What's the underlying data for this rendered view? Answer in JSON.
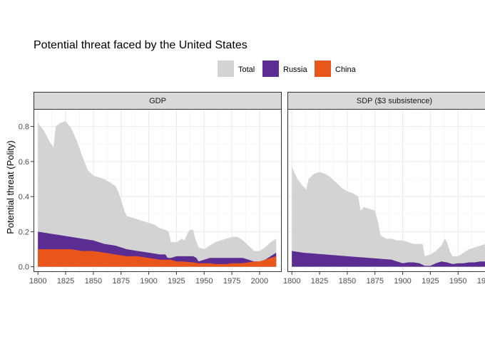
{
  "chart_data": {
    "type": "area",
    "title": "Potential threat faced by the United States",
    "ylabel": "Potential threat (Polity)",
    "xlabel": "",
    "legend": {
      "position": "top-right",
      "entries": [
        {
          "name": "Total",
          "color": "#d3d3d3"
        },
        {
          "name": "Russia",
          "color": "#5b2c91"
        },
        {
          "name": "China",
          "color": "#e8561c"
        }
      ]
    },
    "xlim": [
      1796,
      2020
    ],
    "ylim": [
      -0.03,
      0.9
    ],
    "x_ticks": [
      1800,
      1825,
      1850,
      1875,
      1900,
      1925,
      1950,
      1975,
      2000
    ],
    "x_tick_labels": [
      "1800",
      "1825",
      "1850",
      "1875",
      "1900",
      "1925",
      "1950",
      "1975",
      "2000"
    ],
    "y_ticks": [
      0.0,
      0.2,
      0.4,
      0.6,
      0.8
    ],
    "y_tick_labels": [
      "0.0",
      "0.2",
      "0.4",
      "0.6",
      "0.8"
    ],
    "grid": true,
    "panels": [
      {
        "label": "GDP",
        "series": [
          {
            "name": "Total",
            "color": "#d3d3d3",
            "points": [
              [
                1800,
                0.82
              ],
              [
                1805,
                0.78
              ],
              [
                1810,
                0.72
              ],
              [
                1814,
                0.68
              ],
              [
                1816,
                0.8
              ],
              [
                1820,
                0.82
              ],
              [
                1825,
                0.83
              ],
              [
                1830,
                0.79
              ],
              [
                1835,
                0.72
              ],
              [
                1840,
                0.63
              ],
              [
                1845,
                0.55
              ],
              [
                1850,
                0.52
              ],
              [
                1855,
                0.51
              ],
              [
                1860,
                0.5
              ],
              [
                1865,
                0.48
              ],
              [
                1870,
                0.46
              ],
              [
                1873,
                0.42
              ],
              [
                1875,
                0.38
              ],
              [
                1878,
                0.32
              ],
              [
                1880,
                0.29
              ],
              [
                1885,
                0.28
              ],
              [
                1890,
                0.27
              ],
              [
                1895,
                0.26
              ],
              [
                1900,
                0.25
              ],
              [
                1905,
                0.24
              ],
              [
                1910,
                0.22
              ],
              [
                1915,
                0.21
              ],
              [
                1918,
                0.2
              ],
              [
                1920,
                0.14
              ],
              [
                1925,
                0.14
              ],
              [
                1930,
                0.16
              ],
              [
                1932,
                0.15
              ],
              [
                1935,
                0.19
              ],
              [
                1937,
                0.21
              ],
              [
                1940,
                0.21
              ],
              [
                1942,
                0.16
              ],
              [
                1945,
                0.11
              ],
              [
                1950,
                0.1
              ],
              [
                1955,
                0.12
              ],
              [
                1960,
                0.14
              ],
              [
                1965,
                0.15
              ],
              [
                1970,
                0.16
              ],
              [
                1975,
                0.17
              ],
              [
                1980,
                0.17
              ],
              [
                1985,
                0.15
              ],
              [
                1990,
                0.12
              ],
              [
                1995,
                0.09
              ],
              [
                2000,
                0.09
              ],
              [
                2005,
                0.11
              ],
              [
                2010,
                0.14
              ],
              [
                2015,
                0.16
              ]
            ]
          },
          {
            "name": "Russia",
            "color": "#5b2c91",
            "points": [
              [
                1800,
                0.2
              ],
              [
                1810,
                0.19
              ],
              [
                1820,
                0.18
              ],
              [
                1830,
                0.17
              ],
              [
                1840,
                0.16
              ],
              [
                1850,
                0.15
              ],
              [
                1860,
                0.13
              ],
              [
                1870,
                0.12
              ],
              [
                1875,
                0.11
              ],
              [
                1880,
                0.1
              ],
              [
                1890,
                0.09
              ],
              [
                1900,
                0.08
              ],
              [
                1910,
                0.07
              ],
              [
                1915,
                0.07
              ],
              [
                1917,
                0.05
              ],
              [
                1920,
                0.05
              ],
              [
                1925,
                0.06
              ],
              [
                1930,
                0.06
              ],
              [
                1935,
                0.06
              ],
              [
                1940,
                0.06
              ],
              [
                1943,
                0.05
              ],
              [
                1945,
                0.03
              ],
              [
                1950,
                0.04
              ],
              [
                1955,
                0.05
              ],
              [
                1960,
                0.05
              ],
              [
                1965,
                0.05
              ],
              [
                1970,
                0.05
              ],
              [
                1975,
                0.05
              ],
              [
                1980,
                0.05
              ],
              [
                1985,
                0.05
              ],
              [
                1990,
                0.04
              ],
              [
                1995,
                0.03
              ],
              [
                2000,
                0.03
              ],
              [
                2005,
                0.04
              ],
              [
                2010,
                0.06
              ],
              [
                2015,
                0.08
              ]
            ]
          },
          {
            "name": "China",
            "color": "#e8561c",
            "points": [
              [
                1800,
                0.1
              ],
              [
                1810,
                0.1
              ],
              [
                1820,
                0.1
              ],
              [
                1830,
                0.1
              ],
              [
                1840,
                0.09
              ],
              [
                1850,
                0.09
              ],
              [
                1860,
                0.08
              ],
              [
                1870,
                0.07
              ],
              [
                1880,
                0.06
              ],
              [
                1890,
                0.06
              ],
              [
                1900,
                0.05
              ],
              [
                1910,
                0.04
              ],
              [
                1920,
                0.04
              ],
              [
                1925,
                0.03
              ],
              [
                1930,
                0.03
              ],
              [
                1940,
                0.025
              ],
              [
                1945,
                0.02
              ],
              [
                1950,
                0.02
              ],
              [
                1955,
                0.02
              ],
              [
                1960,
                0.015
              ],
              [
                1970,
                0.015
              ],
              [
                1975,
                0.02
              ],
              [
                1980,
                0.02
              ],
              [
                1985,
                0.02
              ],
              [
                1990,
                0.025
              ],
              [
                1995,
                0.03
              ],
              [
                2000,
                0.03
              ],
              [
                2005,
                0.04
              ],
              [
                2010,
                0.05
              ],
              [
                2015,
                0.06
              ]
            ]
          }
        ]
      },
      {
        "label": "SDP ($3 subsistence)",
        "series": [
          {
            "name": "Total",
            "color": "#d3d3d3",
            "points": [
              [
                1800,
                0.57
              ],
              [
                1805,
                0.5
              ],
              [
                1810,
                0.46
              ],
              [
                1813,
                0.44
              ],
              [
                1815,
                0.5
              ],
              [
                1820,
                0.53
              ],
              [
                1825,
                0.54
              ],
              [
                1830,
                0.53
              ],
              [
                1835,
                0.51
              ],
              [
                1840,
                0.48
              ],
              [
                1845,
                0.45
              ],
              [
                1850,
                0.43
              ],
              [
                1855,
                0.42
              ],
              [
                1860,
                0.4
              ],
              [
                1862,
                0.32
              ],
              [
                1865,
                0.34
              ],
              [
                1870,
                0.33
              ],
              [
                1875,
                0.32
              ],
              [
                1878,
                0.25
              ],
              [
                1880,
                0.18
              ],
              [
                1885,
                0.16
              ],
              [
                1890,
                0.16
              ],
              [
                1895,
                0.15
              ],
              [
                1900,
                0.15
              ],
              [
                1905,
                0.14
              ],
              [
                1910,
                0.13
              ],
              [
                1915,
                0.13
              ],
              [
                1918,
                0.13
              ],
              [
                1920,
                0.06
              ],
              [
                1925,
                0.07
              ],
              [
                1930,
                0.09
              ],
              [
                1935,
                0.12
              ],
              [
                1938,
                0.16
              ],
              [
                1940,
                0.14
              ],
              [
                1943,
                0.08
              ],
              [
                1945,
                0.06
              ],
              [
                1950,
                0.06
              ],
              [
                1955,
                0.08
              ],
              [
                1960,
                0.1
              ],
              [
                1965,
                0.11
              ],
              [
                1970,
                0.12
              ],
              [
                1975,
                0.13
              ],
              [
                1980,
                0.14
              ]
            ]
          },
          {
            "name": "Russia",
            "color": "#5b2c91",
            "points": [
              [
                1800,
                0.09
              ],
              [
                1810,
                0.08
              ],
              [
                1820,
                0.075
              ],
              [
                1830,
                0.07
              ],
              [
                1840,
                0.065
              ],
              [
                1850,
                0.06
              ],
              [
                1860,
                0.055
              ],
              [
                1870,
                0.05
              ],
              [
                1880,
                0.045
              ],
              [
                1890,
                0.04
              ],
              [
                1895,
                0.03
              ],
              [
                1900,
                0.02
              ],
              [
                1905,
                0.025
              ],
              [
                1910,
                0.025
              ],
              [
                1915,
                0.02
              ],
              [
                1920,
                0.005
              ],
              [
                1925,
                0.005
              ],
              [
                1930,
                0.02
              ],
              [
                1935,
                0.03
              ],
              [
                1940,
                0.025
              ],
              [
                1945,
                0.015
              ],
              [
                1950,
                0.02
              ],
              [
                1955,
                0.02
              ],
              [
                1960,
                0.025
              ],
              [
                1965,
                0.025
              ],
              [
                1970,
                0.03
              ],
              [
                1975,
                0.03
              ],
              [
                1980,
                0.035
              ]
            ]
          },
          {
            "name": "China",
            "color": "#e8561c",
            "points": [
              [
                1800,
                0.0
              ],
              [
                1960,
                0.0
              ],
              [
                1970,
                0.0
              ],
              [
                1975,
                0.003
              ],
              [
                1980,
                0.008
              ]
            ]
          }
        ]
      }
    ]
  }
}
